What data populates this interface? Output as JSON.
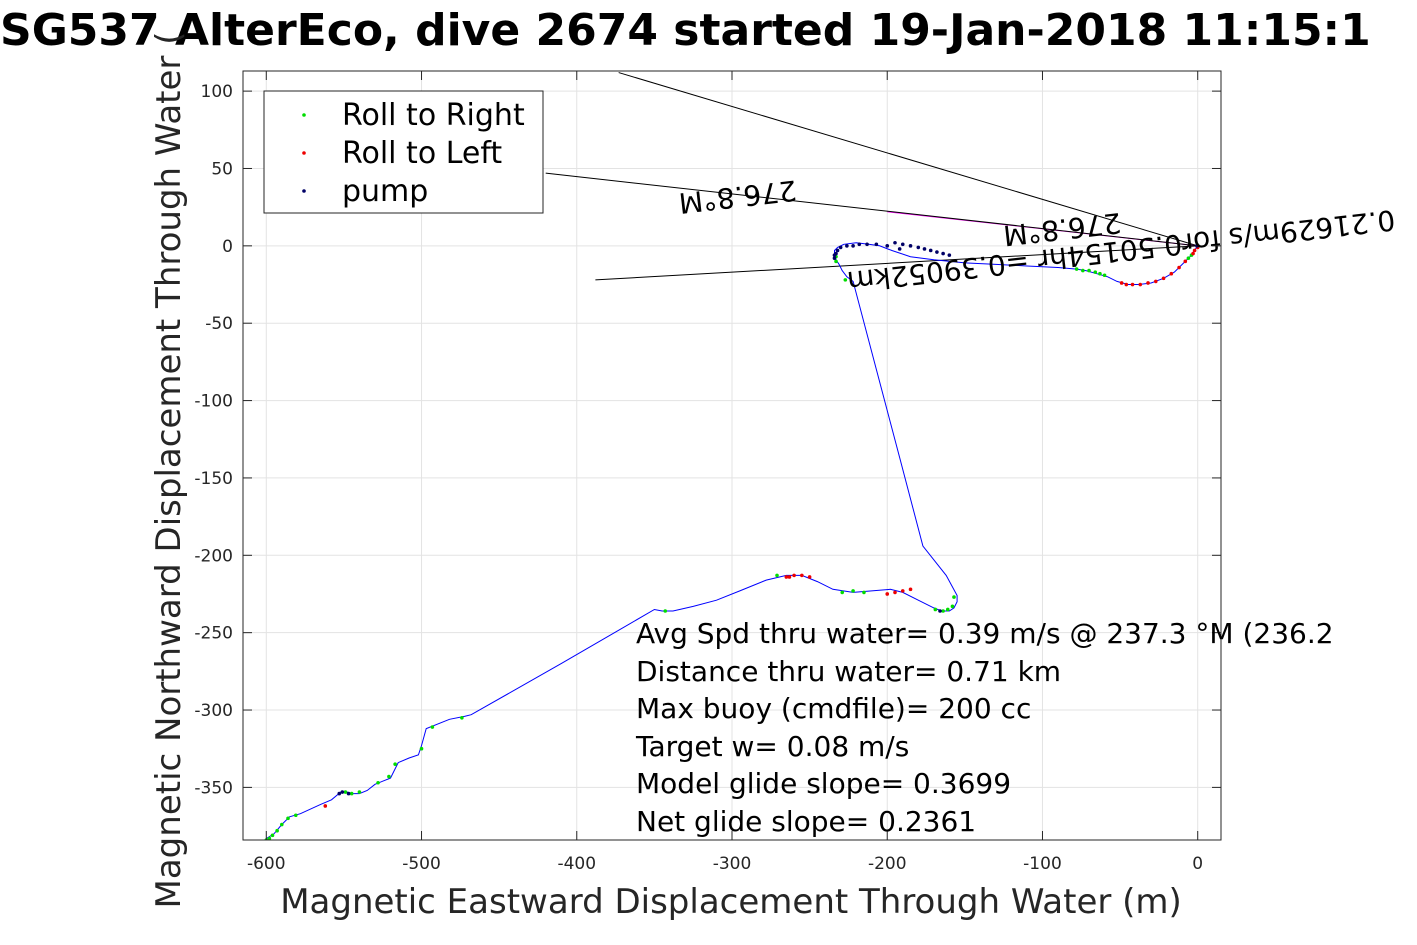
{
  "chart_data": {
    "type": "scatter",
    "title": "SG537 AlterEco, dive 2674 started 19-Jan-2018 11:15:1",
    "xlabel": "Magnetic Eastward Displacement Through Water (m)",
    "ylabel": "Magnetic Northward Displacement Through Water (",
    "xlim": [
      -615,
      15
    ],
    "ylim": [
      -384,
      113
    ],
    "xticks": [
      -600,
      -500,
      -400,
      -300,
      -200,
      -100,
      0
    ],
    "yticks": [
      100,
      50,
      0,
      -50,
      -100,
      -150,
      -200,
      -250,
      -300,
      -350
    ],
    "grid": true,
    "legend_position": "top-left",
    "legend": [
      {
        "label": "Roll to Right",
        "color": "#00dd00"
      },
      {
        "label": "Roll to Left",
        "color": "#ee0000"
      },
      {
        "label": "pump",
        "color": "#000066"
      }
    ],
    "track": {
      "color": "#0000ff",
      "points": [
        [
          0,
          0
        ],
        [
          -5,
          -7
        ],
        [
          -10,
          -12
        ],
        [
          -15,
          -17
        ],
        [
          -22,
          -21
        ],
        [
          -30,
          -24
        ],
        [
          -38,
          -25
        ],
        [
          -45,
          -25
        ],
        [
          -52,
          -23
        ],
        [
          -58,
          -20
        ],
        [
          -65,
          -18
        ],
        [
          -72,
          -16
        ],
        [
          -78,
          -15
        ],
        [
          -90,
          -14
        ],
        [
          -110,
          -13
        ],
        [
          -130,
          -12
        ],
        [
          -150,
          -11
        ],
        [
          -170,
          -9
        ],
        [
          -185,
          -7
        ],
        [
          -197,
          -3
        ],
        [
          -205,
          0
        ],
        [
          -212,
          1
        ],
        [
          -220,
          2
        ],
        [
          -228,
          1
        ],
        [
          -232,
          -1
        ],
        [
          -234,
          -3
        ],
        [
          -234,
          -6
        ],
        [
          -233,
          -9
        ],
        [
          -231,
          -12
        ],
        [
          -229,
          -16
        ],
        [
          -226,
          -20
        ],
        [
          -222,
          -23
        ],
        [
          -207,
          -80
        ],
        [
          -192,
          -137
        ],
        [
          -177,
          -194
        ],
        [
          -162,
          -213
        ],
        [
          -155,
          -226
        ],
        [
          -155,
          -230
        ],
        [
          -157,
          -234
        ],
        [
          -160,
          -236
        ],
        [
          -165,
          -236
        ],
        [
          -170,
          -234
        ],
        [
          -180,
          -229
        ],
        [
          -190,
          -224
        ],
        [
          -198,
          -222
        ],
        [
          -210,
          -223
        ],
        [
          -222,
          -224
        ],
        [
          -235,
          -222
        ],
        [
          -245,
          -217
        ],
        [
          -255,
          -213
        ],
        [
          -265,
          -213
        ],
        [
          -278,
          -216
        ],
        [
          -295,
          -223
        ],
        [
          -310,
          -229
        ],
        [
          -325,
          -233
        ],
        [
          -338,
          -236
        ],
        [
          -345,
          -236
        ],
        [
          -350,
          -235
        ],
        [
          -410,
          -270
        ],
        [
          -468,
          -303
        ],
        [
          -472,
          -304
        ],
        [
          -482,
          -306
        ],
        [
          -497,
          -312
        ],
        [
          -500,
          -323
        ],
        [
          -502,
          -329
        ],
        [
          -508,
          -331
        ],
        [
          -515,
          -334
        ],
        [
          -518,
          -340
        ],
        [
          -520,
          -344
        ],
        [
          -525,
          -346
        ],
        [
          -530,
          -348
        ],
        [
          -535,
          -352
        ],
        [
          -540,
          -354
        ],
        [
          -545,
          -354
        ],
        [
          -548,
          -353
        ],
        [
          -552,
          -353
        ],
        [
          -558,
          -358
        ],
        [
          -565,
          -361
        ],
        [
          -578,
          -367
        ],
        [
          -585,
          -369
        ],
        [
          -590,
          -374
        ],
        [
          -595,
          -380
        ],
        [
          -600,
          -383
        ]
      ]
    },
    "roll_right": [
      [
        -4,
        -6
      ],
      [
        -6,
        -8
      ],
      [
        -60,
        -19
      ],
      [
        -63,
        -18
      ],
      [
        -66,
        -17
      ],
      [
        -70,
        -16
      ],
      [
        -74,
        -16
      ],
      [
        -78,
        -15
      ],
      [
        -227,
        -22
      ],
      [
        -233,
        -7
      ],
      [
        -233,
        -10
      ],
      [
        -157,
        -227
      ],
      [
        -158,
        -233
      ],
      [
        -161,
        -235
      ],
      [
        -164,
        -236
      ],
      [
        -169,
        -235
      ],
      [
        -215,
        -224
      ],
      [
        -222,
        -223
      ],
      [
        -229,
        -224
      ],
      [
        -271,
        -213
      ],
      [
        -343,
        -236
      ],
      [
        -493,
        -311
      ],
      [
        -474,
        -305
      ],
      [
        -500,
        -325
      ],
      [
        -517,
        -335
      ],
      [
        -521,
        -343
      ],
      [
        -528,
        -347
      ],
      [
        -540,
        -353
      ],
      [
        -545,
        -354
      ],
      [
        -549,
        -353
      ],
      [
        -581,
        -368
      ],
      [
        -586,
        -370
      ],
      [
        -590,
        -374
      ],
      [
        -593,
        -378
      ],
      [
        -596,
        -381
      ],
      [
        -598,
        -383
      ],
      [
        -600,
        -384
      ]
    ],
    "roll_left": [
      [
        0,
        -1
      ],
      [
        -2,
        -3
      ],
      [
        -3,
        -5
      ],
      [
        -8,
        -10
      ],
      [
        -12,
        -14
      ],
      [
        -17,
        -18
      ],
      [
        -22,
        -21
      ],
      [
        -27,
        -23
      ],
      [
        -32,
        -24
      ],
      [
        -37,
        -25
      ],
      [
        -42,
        -25
      ],
      [
        -46,
        -25
      ],
      [
        -49,
        -24
      ],
      [
        -185,
        -222
      ],
      [
        -190,
        -223
      ],
      [
        -195,
        -224
      ],
      [
        -200,
        -225
      ],
      [
        -250,
        -214
      ],
      [
        -255,
        -213
      ],
      [
        -260,
        -213
      ],
      [
        -263,
        -214
      ],
      [
        -265,
        -214
      ],
      [
        -562,
        -362
      ]
    ],
    "pump": [
      [
        -200,
        0
      ],
      [
        -207,
        1
      ],
      [
        -213,
        1
      ],
      [
        -218,
        1
      ],
      [
        -222,
        0
      ],
      [
        -226,
        0
      ],
      [
        -230,
        -1
      ],
      [
        -232,
        -3
      ],
      [
        -233,
        -5
      ],
      [
        -234,
        -6
      ],
      [
        -234,
        -8
      ],
      [
        -195,
        2
      ],
      [
        -190,
        1
      ],
      [
        -185,
        0
      ],
      [
        -180,
        -1
      ],
      [
        -176,
        -2
      ],
      [
        -172,
        -3
      ],
      [
        -168,
        -4
      ],
      [
        -164,
        -5
      ],
      [
        -160,
        -6
      ],
      [
        -192,
        -2
      ],
      [
        -166,
        -236
      ],
      [
        -551,
        -353
      ],
      [
        -553,
        -354
      ],
      [
        -547,
        -354
      ],
      [
        -0.5,
        0
      ]
    ],
    "lines": [
      {
        "color": "#000000",
        "points": [
          [
            0,
            0
          ],
          [
            -373,
            112
          ]
        ]
      },
      {
        "color": "#000000",
        "points": [
          [
            0,
            0
          ],
          [
            -388,
            -22
          ]
        ]
      },
      {
        "color": "#ff00ff",
        "points": [
          [
            0,
            0
          ],
          [
            -200,
            22
          ]
        ]
      },
      {
        "color": "#000000",
        "points": [
          [
            0,
            0
          ],
          [
            -420,
            47
          ]
        ]
      }
    ],
    "rotated_labels": [
      {
        "text": "276.8°M",
        "x": -297,
        "y": 38
      },
      {
        "text": "0.21629m/s for0.50154hr =0.39052km",
        "x": -50,
        "y": 3
      },
      {
        "text": "276.8°M",
        "x": -88,
        "y": 17
      }
    ],
    "annotations": [
      "Avg Spd thru water=  0.39 m/s @ 237.3 °M (236.2",
      "Distance thru water=  0.71 km",
      "Max buoy (cmdfile)= 200 cc",
      "Target w= 0.08 m/s",
      "Model glide slope= 0.3699",
      "Net glide slope= 0.2361"
    ]
  }
}
